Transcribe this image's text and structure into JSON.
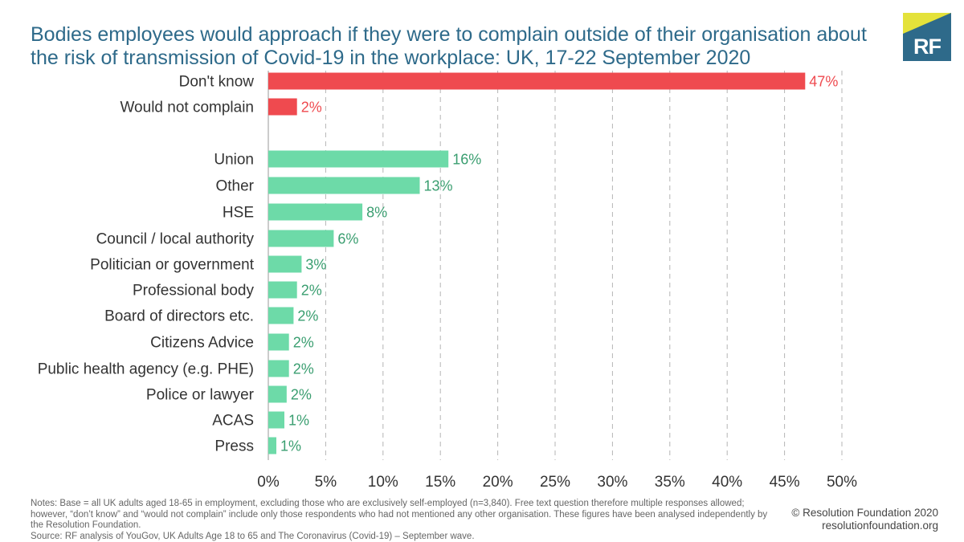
{
  "header": {
    "title": "Bodies employees would approach if they were to complain outside of their organisation about the risk of transmission of Covid-19 in the workplace: UK, 17-22 September 2020",
    "logo_text": "RF"
  },
  "colors": {
    "title": "#2e6a8a",
    "red": "#ef4a4f",
    "green": "#6ddaa8",
    "green_label": "#3a9e70",
    "logo_bg": "#2e6a8a",
    "logo_accent": "#e4e23a",
    "grid": "#b5b5b5"
  },
  "chart_data": {
    "type": "bar",
    "orientation": "horizontal",
    "categories": [
      "Don't know",
      "Would not complain",
      "Union",
      "Other",
      "HSE",
      "Council / local authority",
      "Politician or government",
      "Professional body",
      "Board of directors etc.",
      "Citizens Advice",
      "Public health agency (e.g. PHE)",
      "Police or lawyer",
      "ACAS",
      "Press"
    ],
    "values": [
      46.8,
      2.5,
      15.7,
      13.2,
      8.2,
      5.7,
      2.9,
      2.5,
      2.2,
      1.8,
      1.8,
      1.6,
      1.4,
      0.7
    ],
    "value_labels": [
      "47%",
      "2%",
      "16%",
      "13%",
      "8%",
      "6%",
      "3%",
      "2%",
      "2%",
      "2%",
      "2%",
      "2%",
      "1%",
      "1%"
    ],
    "groups": [
      "red",
      "red",
      "green",
      "green",
      "green",
      "green",
      "green",
      "green",
      "green",
      "green",
      "green",
      "green",
      "green",
      "green"
    ],
    "xlim": [
      0,
      50
    ],
    "x_ticks": [
      0,
      5,
      10,
      15,
      20,
      25,
      30,
      35,
      40,
      45,
      50
    ],
    "x_tick_labels": [
      "0%",
      "5%",
      "10%",
      "15%",
      "20%",
      "25%",
      "30%",
      "35%",
      "40%",
      "45%",
      "50%"
    ],
    "grid": "vertical dashed",
    "title": "Bodies employees would approach if they were to complain outside of their organisation about the risk of transmission of Covid-19 in the workplace: UK, 17-22 September 2020",
    "xlabel": "",
    "ylabel": ""
  },
  "footer": {
    "notes": "Notes: Base = all UK adults aged 18-65 in employment, excluding those who are exclusively self-employed (n=3,840). Free text question therefore multiple responses allowed; however, “don’t know” and “would not complain” include only those respondents who had not mentioned any other organisation. These figures have been analysed independently by the Resolution Foundation.",
    "source": "Source: RF analysis of YouGov, UK Adults Age 18 to 65 and The Coronavirus (Covid-19) – September wave.",
    "copyright": "© Resolution Foundation 2020",
    "website": "resolutionfoundation.org"
  }
}
